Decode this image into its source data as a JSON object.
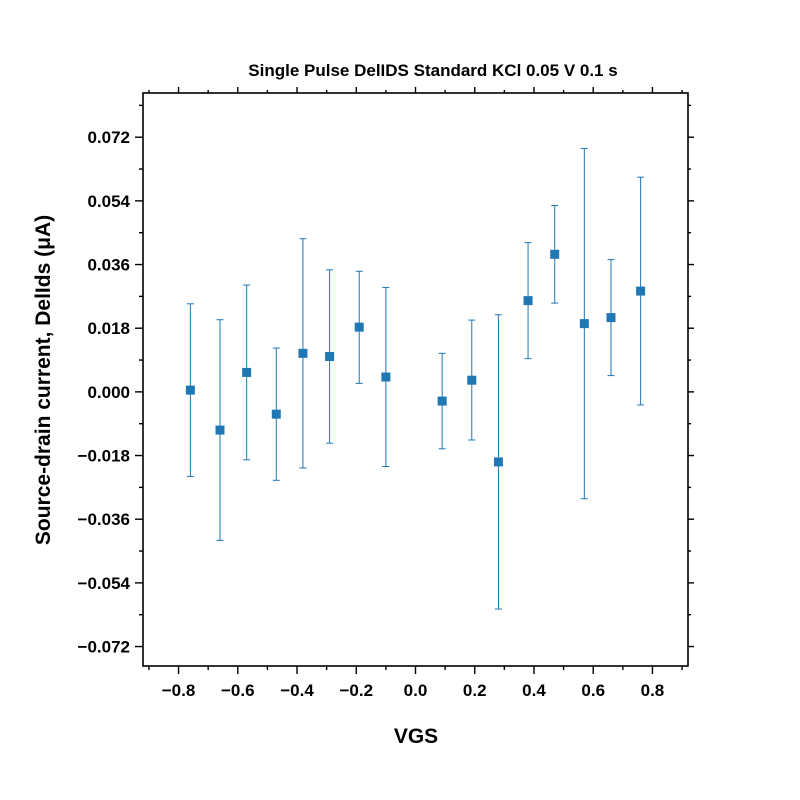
{
  "chart_data": {
    "type": "scatter",
    "title": "Single Pulse DelIDS Standard KCl 0.05 V 0.1 s",
    "xlabel": "VGS",
    "ylabel": "Source-drain current, DelIds (μA)",
    "xlim": [
      -0.92,
      0.92
    ],
    "ylim": [
      -0.0775,
      0.0845
    ],
    "x_ticks": [
      -0.8,
      -0.6,
      -0.4,
      -0.2,
      0.0,
      0.2,
      0.4,
      0.6,
      0.8
    ],
    "x_tick_labels": [
      "−0.8",
      "−0.6",
      "−0.4",
      "−0.2",
      "0.0",
      "0.2",
      "0.4",
      "0.6",
      "0.8"
    ],
    "y_ticks": [
      -0.072,
      -0.054,
      -0.036,
      -0.018,
      0.0,
      0.018,
      0.036,
      0.054,
      0.072
    ],
    "y_tick_labels": [
      "−0.072",
      "−0.054",
      "−0.036",
      "−0.018",
      "0.000",
      "0.018",
      "0.036",
      "0.054",
      "0.072"
    ],
    "grid": false,
    "marker": "square",
    "color": "#1f77b4",
    "series": [
      {
        "points": [
          {
            "x": -0.76,
            "y": 0.0005,
            "y_low": -0.0239,
            "y_high": 0.0249
          },
          {
            "x": -0.66,
            "y": -0.0108,
            "y_low": -0.042,
            "y_high": 0.0204
          },
          {
            "x": -0.57,
            "y": 0.0055,
            "y_low": -0.0192,
            "y_high": 0.0302
          },
          {
            "x": -0.47,
            "y": -0.0063,
            "y_low": -0.025,
            "y_high": 0.0124
          },
          {
            "x": -0.38,
            "y": 0.0109,
            "y_low": -0.0215,
            "y_high": 0.0433
          },
          {
            "x": -0.29,
            "y": 0.01,
            "y_low": -0.0145,
            "y_high": 0.0345
          },
          {
            "x": -0.19,
            "y": 0.0183,
            "y_low": 0.0024,
            "y_high": 0.0341
          },
          {
            "x": -0.1,
            "y": 0.0042,
            "y_low": -0.0211,
            "y_high": 0.0295
          },
          {
            "x": 0.09,
            "y": -0.0026,
            "y_low": -0.0161,
            "y_high": 0.0109
          },
          {
            "x": 0.19,
            "y": 0.0033,
            "y_low": -0.0136,
            "y_high": 0.0203
          },
          {
            "x": 0.28,
            "y": -0.0198,
            "y_low": -0.0614,
            "y_high": 0.0218
          },
          {
            "x": 0.38,
            "y": 0.0258,
            "y_low": 0.0094,
            "y_high": 0.0422
          },
          {
            "x": 0.47,
            "y": 0.0389,
            "y_low": 0.0251,
            "y_high": 0.0527
          },
          {
            "x": 0.57,
            "y": 0.0193,
            "y_low": -0.0302,
            "y_high": 0.0688
          },
          {
            "x": 0.66,
            "y": 0.021,
            "y_low": 0.0046,
            "y_high": 0.0374
          },
          {
            "x": 0.76,
            "y": 0.0285,
            "y_low": -0.0037,
            "y_high": 0.0607
          }
        ]
      }
    ]
  }
}
